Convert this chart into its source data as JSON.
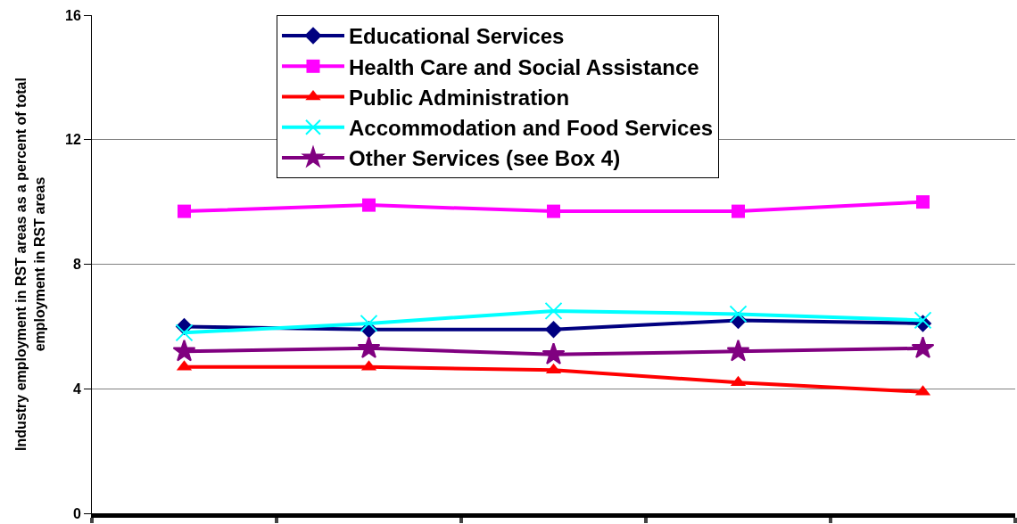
{
  "chart_data": {
    "type": "line",
    "ylabel": "Industry employment in RST areas as a percent of total employment in RST areas",
    "categories": [
      null,
      null,
      null,
      null,
      null
    ],
    "series": [
      {
        "name": "Educational Services",
        "color": "#000080",
        "marker": "diamond",
        "values": [
          6.0,
          5.9,
          5.9,
          6.2,
          6.1
        ]
      },
      {
        "name": "Health Care and Social Assistance",
        "color": "#ff00ff",
        "marker": "square",
        "values": [
          9.7,
          9.9,
          9.7,
          9.7,
          10.0
        ]
      },
      {
        "name": "Public Administration",
        "color": "#ff0000",
        "marker": "triangle",
        "values": [
          4.7,
          4.7,
          4.6,
          4.2,
          3.9
        ]
      },
      {
        "name": "Accommodation and Food Services",
        "color": "#00ffff",
        "marker": "cross",
        "values": [
          5.8,
          6.1,
          6.5,
          6.4,
          6.2
        ]
      },
      {
        "name": "Other Services (see Box 4)",
        "color": "#800080",
        "marker": "star",
        "values": [
          5.2,
          5.3,
          5.1,
          5.2,
          5.3
        ]
      }
    ],
    "ylim": [
      0,
      16
    ],
    "yticks": [
      0,
      4,
      8,
      12,
      16
    ],
    "grid": "y",
    "legend": "top",
    "line_style": "solid"
  }
}
